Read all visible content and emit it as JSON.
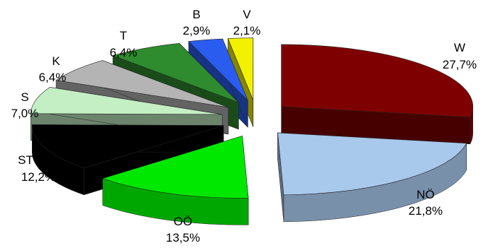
{
  "chart_data": {
    "type": "pie",
    "style": "3d-exploded",
    "slices": [
      {
        "name": "W",
        "value_label": "27,7%",
        "value": 27.7,
        "color": "#7f0000"
      },
      {
        "name": "NÖ",
        "value_label": "21,8%",
        "value": 21.8,
        "color": "#a8c8ec"
      },
      {
        "name": "OÖ",
        "value_label": "13,5%",
        "value": 13.5,
        "color": "#00e800"
      },
      {
        "name": "ST",
        "value_label": "12,2%",
        "value": 12.2,
        "color": "#000000"
      },
      {
        "name": "S",
        "value_label": "7,0%",
        "value": 7.0,
        "color": "#c4efc4"
      },
      {
        "name": "K",
        "value_label": "6,4%",
        "value": 6.4,
        "color": "#b4b4b4"
      },
      {
        "name": "T",
        "value_label": "6,4%",
        "value": 6.4,
        "color": "#2e8b2e"
      },
      {
        "name": "B",
        "value_label": "2,9%",
        "value": 2.9,
        "color": "#2a5cf0"
      },
      {
        "name": "V",
        "value_label": "2,1%",
        "value": 2.1,
        "color": "#f2f200"
      }
    ]
  }
}
